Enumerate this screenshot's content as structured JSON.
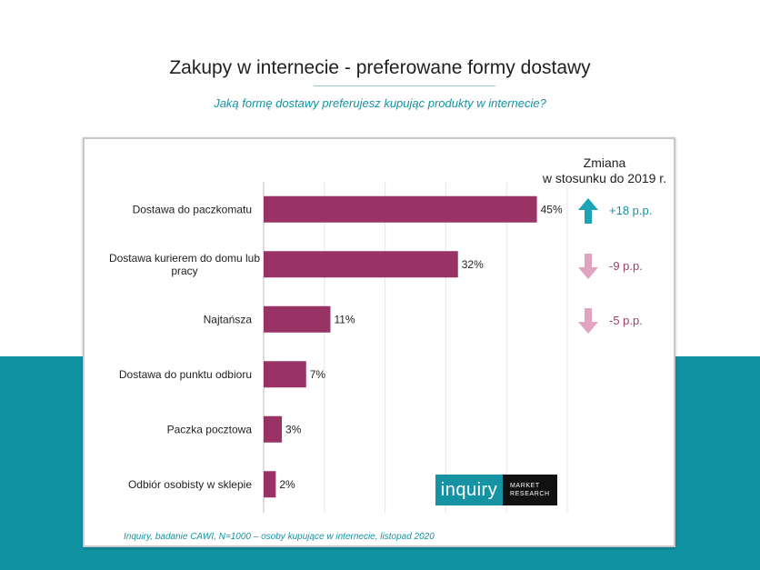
{
  "title": "Zakupy w internecie - preferowane formy dostawy",
  "subtitle": "Jaką formę dostawy preferujesz kupując produkty w internecie?",
  "change_header": [
    "Zmiana",
    "w stosunku do 2019 r."
  ],
  "chart_data": {
    "type": "bar",
    "orientation": "horizontal",
    "categories": [
      "Dostawa do paczkomatu",
      "Dostawa kurierem do domu lub pracy",
      "Najtańsza",
      "Dostawa do punktu odbioru",
      "Paczka pocztowa",
      "Odbiór osobisty w sklepie"
    ],
    "category_lines": [
      [
        "Dostawa do paczkomatu"
      ],
      [
        "Dostawa kurierem do domu lub",
        "pracy"
      ],
      [
        "Najtańsza"
      ],
      [
        "Dostawa do punktu odbioru"
      ],
      [
        "Paczka pocztowa"
      ],
      [
        "Odbiór osobisty w sklepie"
      ]
    ],
    "values": [
      45,
      32,
      11,
      7,
      3,
      2
    ],
    "value_labels": [
      "45%",
      "32%",
      "11%",
      "7%",
      "3%",
      "2%"
    ],
    "xlim": [
      0,
      50
    ],
    "grid": true,
    "bar_color": "#993366"
  },
  "changes": [
    {
      "text": "+18 p.p.",
      "direction": "up",
      "color": "#1593a3",
      "icon": "arrow-up-icon"
    },
    {
      "text": "-9 p.p.",
      "direction": "down",
      "color": "#9e3f6c",
      "icon": "arrow-down-icon"
    },
    {
      "text": "-5 p.p.",
      "direction": "down",
      "color": "#9e3f6c",
      "icon": "arrow-down-icon"
    }
  ],
  "arrow_down_fill": "#e2a3c1",
  "arrow_up_fill": "#1aa4b6",
  "logo": {
    "main": "inquiry",
    "side_line1": "MARKET",
    "side_line2": "RESEARCH"
  },
  "source": "Inquiry, badanie CAWI, N=1000 – osoby kupujące w internecie, listopad 2020"
}
